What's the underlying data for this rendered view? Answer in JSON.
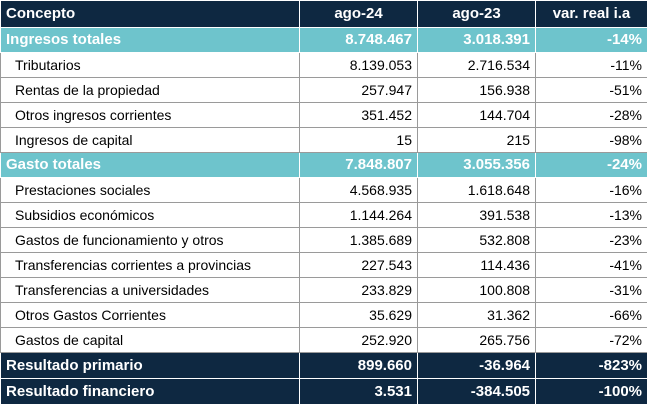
{
  "header": {
    "concept": "Concepto",
    "col1": "ago-24",
    "col2": "ago-23",
    "col3": "var. real i.a"
  },
  "ingresos": {
    "label": "Ingresos totales",
    "v1": "8.748.467",
    "v2": "3.018.391",
    "var": "-14%",
    "items": [
      {
        "label": "Tributarios",
        "v1": "8.139.053",
        "v2": "2.716.534",
        "var": "-11%"
      },
      {
        "label": "Rentas de la propiedad",
        "v1": "257.947",
        "v2": "156.938",
        "var": "-51%"
      },
      {
        "label": "Otros ingresos corrientes",
        "v1": "351.452",
        "v2": "144.704",
        "var": "-28%"
      },
      {
        "label": "Ingresos de capital",
        "v1": "15",
        "v2": "215",
        "var": "-98%"
      }
    ]
  },
  "gasto": {
    "label": "Gasto totales",
    "v1": "7.848.807",
    "v2": "3.055.356",
    "var": "-24%",
    "items": [
      {
        "label": "Prestaciones sociales",
        "v1": "4.568.935",
        "v2": "1.618.648",
        "var": "-16%"
      },
      {
        "label": "Subsidios económicos",
        "v1": "1.144.264",
        "v2": "391.538",
        "var": "-13%"
      },
      {
        "label": "Gastos de funcionamiento y otros",
        "v1": "1.385.689",
        "v2": "532.808",
        "var": "-23%"
      },
      {
        "label": "Transferencias corrientes a provincias",
        "v1": "227.543",
        "v2": "114.436",
        "var": "-41%"
      },
      {
        "label": "Transferencias a universidades",
        "v1": "233.829",
        "v2": "100.808",
        "var": "-31%"
      },
      {
        "label": "Otros Gastos Corrientes",
        "v1": "35.629",
        "v2": "31.362",
        "var": "-66%"
      },
      {
        "label": "Gastos de capital",
        "v1": "252.920",
        "v2": "265.756",
        "var": "-72%"
      }
    ]
  },
  "resultado_primario": {
    "label": "Resultado primario",
    "v1": "899.660",
    "v2": "-36.964",
    "var": "-823%"
  },
  "resultado_financiero": {
    "label": "Resultado financiero",
    "v1": "3.531",
    "v2": "-384.505",
    "var": "-100%"
  }
}
